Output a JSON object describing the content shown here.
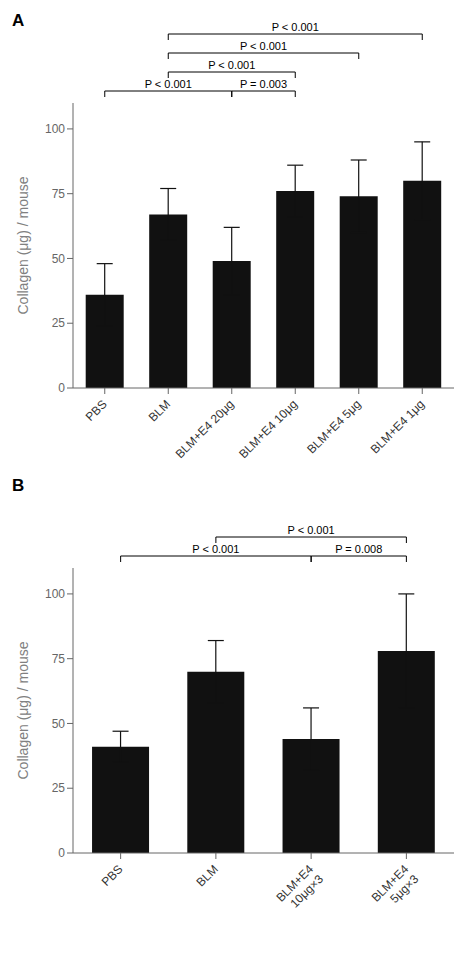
{
  "chart_data": [
    {
      "type": "bar",
      "title": "A",
      "categories": [
        "PBS",
        "BLM",
        "BLM+E4 20μg",
        "BLM+E4 10μg",
        "BLM+E4 5μg",
        "BLM+E4 1μg"
      ],
      "values": [
        36,
        67,
        49,
        76,
        74,
        80
      ],
      "errors": [
        12,
        10,
        13,
        10,
        14,
        15
      ],
      "color": "#111111",
      "y_label": "Collagen (μg) / mouse",
      "ylim": [
        0,
        110
      ],
      "yticks": [
        0,
        25,
        50,
        75,
        100
      ],
      "grid": false,
      "annotations": [
        {
          "x1": "BLM",
          "x2": "BLM+E4 1μg",
          "text": "P < 0.001"
        },
        {
          "x1": "BLM",
          "x2": "BLM+E4 5μg",
          "text": "P < 0.001"
        },
        {
          "x1": "BLM",
          "x2": "BLM+E4 10μg",
          "text": "P < 0.001"
        },
        {
          "x1": "PBS",
          "x2": "BLM+E4 20μg",
          "text": "P < 0.001"
        },
        {
          "x1": "BLM+E4 20μg",
          "x2": "BLM+E4 10μg",
          "text": "P = 0.003"
        }
      ]
    },
    {
      "type": "bar",
      "title": "B",
      "categories": [
        "PBS",
        "BLM",
        "BLM+E4\n10μg×3",
        "BLM+E4\n5μg×3"
      ],
      "values": [
        41,
        70,
        44,
        78
      ],
      "errors": [
        6,
        12,
        12,
        22
      ],
      "color": "#111111",
      "y_label": "Collagen (μg) / mouse",
      "ylim": [
        0,
        110
      ],
      "yticks": [
        0,
        25,
        50,
        75,
        100
      ],
      "grid": false,
      "annotations": [
        {
          "x1": "BLM",
          "x2": "BLM+E4\n5μg×3",
          "text": "P < 0.001"
        },
        {
          "x1": "PBS",
          "x2": "BLM+E4\n10μg×3",
          "text": "P < 0.001"
        },
        {
          "x1": "BLM+E4\n10μg×3",
          "x2": "BLM+E4\n5μg×3",
          "text": "P = 0.008"
        }
      ]
    }
  ]
}
